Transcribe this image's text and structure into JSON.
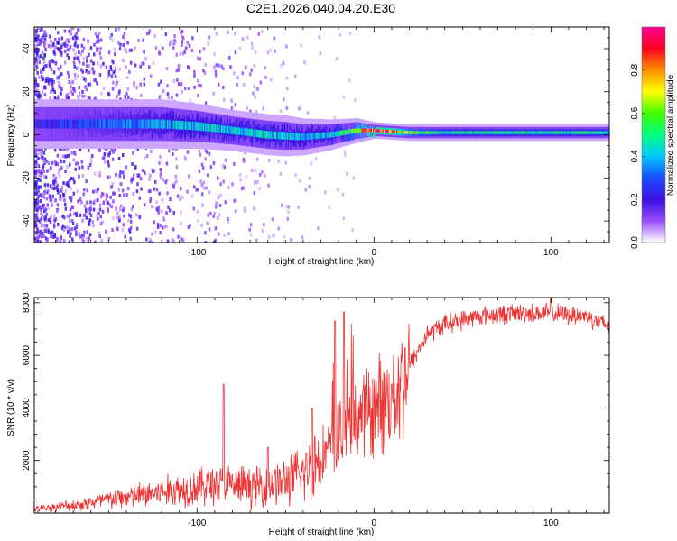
{
  "figure_title": "C2E1.2026.040.04.20.E30",
  "chart_data": [
    {
      "type": "heatmap",
      "title": "",
      "xlabel": "Height of straight line (km)",
      "ylabel": "Frequency (Hz)",
      "xlim": [
        -192,
        133
      ],
      "ylim": [
        -50,
        50
      ],
      "xticks": [
        -100,
        0,
        100
      ],
      "yticks": [
        -40,
        -20,
        0,
        20,
        40
      ],
      "colorbar": {
        "label": "Normalized spectral amplitude",
        "range": [
          0.0,
          1.0
        ],
        "ticks": [
          "0.0",
          "0.2",
          "0.4",
          "0.6",
          "0.8"
        ],
        "colors": [
          "#ffffff",
          "#9a4dff",
          "#3a10e0",
          "#1a4cff",
          "#00c8ff",
          "#00ff80",
          "#40ff00",
          "#ffff00",
          "#ff9000",
          "#ff0020",
          "#ff0090"
        ]
      },
      "band": {
        "center_hz": [
          [
            -192,
            5
          ],
          [
            -150,
            5
          ],
          [
            -120,
            5
          ],
          [
            -100,
            4
          ],
          [
            -80,
            2
          ],
          [
            -60,
            0
          ],
          [
            -40,
            -1
          ],
          [
            -25,
            0
          ],
          [
            -10,
            2
          ],
          [
            0,
            2
          ],
          [
            20,
            1
          ],
          [
            60,
            1
          ],
          [
            100,
            1
          ],
          [
            133,
            1
          ]
        ],
        "halfwidth_hz": [
          [
            -192,
            6
          ],
          [
            -120,
            6
          ],
          [
            -80,
            5
          ],
          [
            -50,
            5
          ],
          [
            -30,
            4
          ],
          [
            -10,
            3
          ],
          [
            0,
            2
          ],
          [
            133,
            2
          ]
        ],
        "amplitude": [
          [
            -192,
            0.2
          ],
          [
            -150,
            0.3
          ],
          [
            -120,
            0.35
          ],
          [
            -90,
            0.4
          ],
          [
            -60,
            0.4
          ],
          [
            -30,
            0.35
          ],
          [
            -15,
            0.5
          ],
          [
            0,
            0.9
          ],
          [
            10,
            0.85
          ],
          [
            20,
            0.6
          ],
          [
            40,
            0.45
          ],
          [
            133,
            0.45
          ]
        ],
        "scatter_noise_until_km": -10
      }
    },
    {
      "type": "line",
      "title": "",
      "xlabel": "Height of straight line (km)",
      "ylabel": "SNR (10 * v/v)",
      "xlim": [
        -192,
        133
      ],
      "ylim": [
        0,
        8200
      ],
      "xticks": [
        -100,
        0,
        100
      ],
      "yticks": [
        2000,
        4000,
        6000,
        8000
      ],
      "color": "#ee3333",
      "series": [
        {
          "name": "SNR",
          "envelope": [
            [
              -192,
              150
            ],
            [
              -170,
              300
            ],
            [
              -150,
              500
            ],
            [
              -130,
              700
            ],
            [
              -110,
              900
            ],
            [
              -90,
              1100
            ],
            [
              -70,
              1000
            ],
            [
              -50,
              1200
            ],
            [
              -40,
              1500
            ],
            [
              -30,
              2200
            ],
            [
              -25,
              2500
            ],
            [
              -20,
              3000
            ],
            [
              -15,
              3200
            ],
            [
              -10,
              3600
            ],
            [
              0,
              4000
            ],
            [
              10,
              4400
            ],
            [
              20,
              5600
            ],
            [
              30,
              6800
            ],
            [
              40,
              7200
            ],
            [
              60,
              7500
            ],
            [
              80,
              7600
            ],
            [
              100,
              7600
            ],
            [
              120,
              7500
            ],
            [
              133,
              7100
            ]
          ],
          "spikes": [
            [
              -85,
              4900
            ],
            [
              -60,
              2500
            ],
            [
              -35,
              4000
            ],
            [
              -22,
              7300
            ],
            [
              -17,
              7650
            ],
            [
              -12,
              5200
            ],
            [
              10,
              4900
            ],
            [
              100,
              8200
            ]
          ]
        }
      ]
    }
  ]
}
